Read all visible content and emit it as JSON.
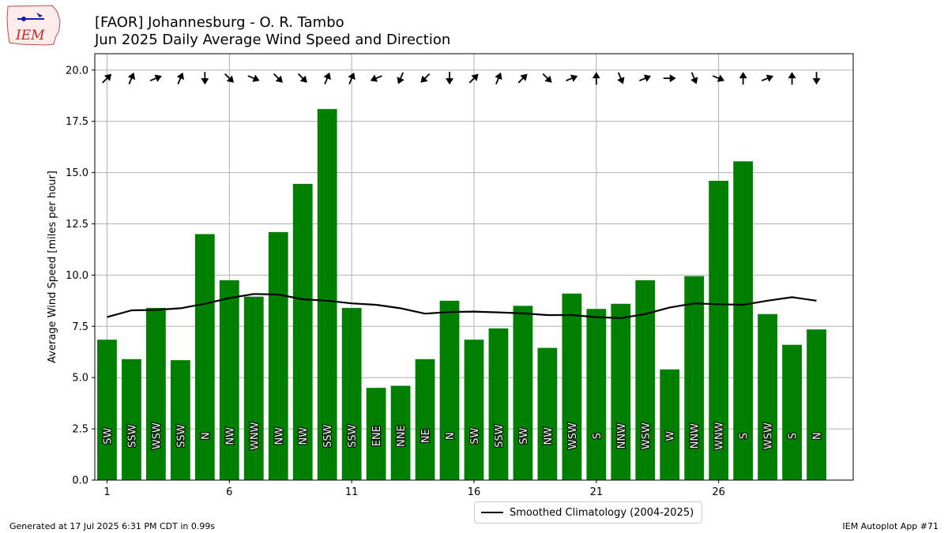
{
  "header": {
    "title_line1": "[FAOR] Johannesburg - O. R. Tambo",
    "title_line2": "Jun 2025 Daily Average Wind Speed and Direction"
  },
  "logo": {
    "text": "IEM"
  },
  "footer": {
    "left": "Generated at 17 Jul 2025 6:31 PM CDT in 0.99s",
    "right": "IEM Autoplot App #71"
  },
  "legend": {
    "label": "Smoothed Climatology (2004-2025)"
  },
  "colors": {
    "bar": "#008000",
    "climatology": "#000000",
    "grid": "#b0b0b0"
  },
  "chart_data": {
    "type": "bar",
    "title": "[FAOR] Johannesburg - O. R. Tambo",
    "subtitle": "Jun 2025 Daily Average Wind Speed and Direction",
    "xlabel": "",
    "ylabel": "Average Wind Speed [miles per hour]",
    "xlim": [
      0.5,
      31.5
    ],
    "ylim": [
      0,
      20.8
    ],
    "x_ticks": [
      1,
      6,
      11,
      16,
      21,
      26
    ],
    "y_ticks": [
      "0.0",
      "2.5",
      "5.0",
      "7.5",
      "10.0",
      "12.5",
      "15.0",
      "17.5",
      "20.0"
    ],
    "grid": true,
    "legend_position": "bottom-center",
    "days": [
      1,
      2,
      3,
      4,
      5,
      6,
      7,
      8,
      9,
      10,
      11,
      12,
      13,
      14,
      15,
      16,
      17,
      18,
      19,
      20,
      21,
      22,
      23,
      24,
      25,
      26,
      27,
      28,
      29,
      30
    ],
    "series": [
      {
        "name": "Daily Average Wind Speed",
        "type": "bar",
        "values": [
          6.85,
          5.9,
          8.4,
          5.85,
          12.0,
          9.75,
          8.95,
          12.1,
          14.45,
          18.1,
          8.4,
          4.5,
          4.6,
          5.9,
          8.75,
          6.85,
          7.4,
          8.5,
          6.45,
          9.1,
          8.35,
          8.6,
          9.75,
          5.4,
          9.95,
          14.6,
          15.55,
          8.1,
          6.6,
          7.35
        ],
        "direction_labels": [
          "SW",
          "SSW",
          "WSW",
          "SSW",
          "N",
          "NW",
          "WNW",
          "NW",
          "NW",
          "SSW",
          "SSW",
          "ENE",
          "NNE",
          "NE",
          "N",
          "SW",
          "SSW",
          "SW",
          "NW",
          "WSW",
          "S",
          "NNW",
          "WSW",
          "W",
          "NNW",
          "WNW",
          "S",
          "WSW",
          "S",
          "N"
        ]
      },
      {
        "name": "Smoothed Climatology (2004-2025)",
        "type": "line",
        "values": [
          7.95,
          8.28,
          8.3,
          8.38,
          8.6,
          8.88,
          9.08,
          9.05,
          8.82,
          8.75,
          8.62,
          8.55,
          8.38,
          8.12,
          8.2,
          8.22,
          8.18,
          8.13,
          8.05,
          8.05,
          7.95,
          7.9,
          8.1,
          8.42,
          8.62,
          8.58,
          8.55,
          8.75,
          8.92,
          8.75
        ]
      }
    ],
    "wind_arrow_directions_deg": [
      225,
      202.5,
      247.5,
      202.5,
      0,
      315,
      292.5,
      315,
      315,
      202.5,
      202.5,
      67.5,
      22.5,
      45,
      0,
      225,
      202.5,
      225,
      315,
      247.5,
      180,
      337.5,
      247.5,
      270,
      337.5,
      292.5,
      180,
      247.5,
      180,
      0
    ]
  }
}
